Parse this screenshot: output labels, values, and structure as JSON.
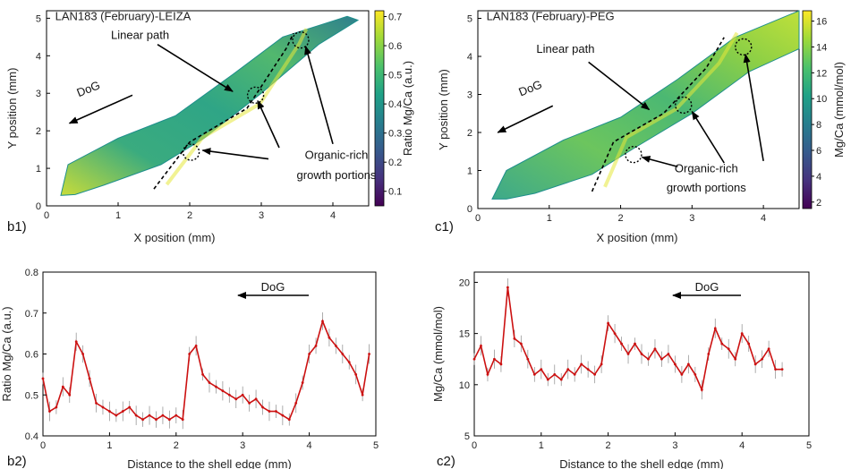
{
  "chart_data": [
    {
      "id": "b1",
      "type": "heatmap",
      "panel_label": "b1)",
      "title": "LAN183 (February)-LEIZA",
      "xlabel": "X position (mm)",
      "ylabel": "Y position (mm)",
      "xlim": [
        0,
        4.5
      ],
      "ylim": [
        0,
        5.2
      ],
      "xticks": [
        "0",
        "1",
        "2",
        "3",
        "4"
      ],
      "yticks": [
        "0",
        "1",
        "2",
        "3",
        "4",
        "5"
      ],
      "colorbar_label": "Ratio Mg/Ca (a.u.)",
      "colorbar_range": [
        0.05,
        0.72
      ],
      "colorbar_ticks": [
        "0.1",
        "0.2",
        "0.3",
        "0.4",
        "0.5",
        "0.6",
        "0.7"
      ],
      "annotations": {
        "linear_path": "Linear path",
        "dog": "DoG",
        "organic_1": "Organic-rich",
        "organic_2": "growth portions"
      }
    },
    {
      "id": "c1",
      "type": "heatmap",
      "panel_label": "c1)",
      "title": "LAN183 (February)-PEG",
      "xlabel": "X position (mm)",
      "ylabel": "Y position (mm)",
      "xlim": [
        0,
        4.5
      ],
      "ylim": [
        0,
        5.2
      ],
      "xticks": [
        "0",
        "1",
        "2",
        "3",
        "4"
      ],
      "yticks": [
        "0",
        "1",
        "2",
        "3",
        "4",
        "5"
      ],
      "colorbar_label": "Mg/Ca  (mmol/mol)",
      "colorbar_range": [
        1.5,
        16.8
      ],
      "colorbar_ticks": [
        "2",
        "4",
        "6",
        "8",
        "10",
        "12",
        "14",
        "16"
      ],
      "annotations": {
        "linear_path": "Linear path",
        "dog": "DoG",
        "organic_1": "Organic-rich",
        "organic_2": "growth portions"
      }
    },
    {
      "id": "b2",
      "type": "line",
      "panel_label": "b2)",
      "xlabel": "Distance to the shell edge (mm)",
      "ylabel": "Ratio Mg/Ca (a.u.)",
      "xlim": [
        0,
        5
      ],
      "ylim": [
        0.4,
        0.8
      ],
      "xticks": [
        "0",
        "1",
        "2",
        "3",
        "4",
        "5"
      ],
      "yticks": [
        "0.4",
        "0.5",
        "0.6",
        "0.7",
        "0.8"
      ],
      "annotation": "DoG",
      "series": [
        {
          "name": "Mg/Ca",
          "color": "#cc1111",
          "x": [
            0,
            0.1,
            0.2,
            0.3,
            0.4,
            0.5,
            0.6,
            0.7,
            0.8,
            0.9,
            1.0,
            1.1,
            1.2,
            1.3,
            1.4,
            1.5,
            1.6,
            1.7,
            1.8,
            1.9,
            2.0,
            2.1,
            2.2,
            2.3,
            2.4,
            2.5,
            2.6,
            2.7,
            2.8,
            2.9,
            3.0,
            3.1,
            3.2,
            3.3,
            3.4,
            3.5,
            3.6,
            3.7,
            3.8,
            3.9,
            4.0,
            4.1,
            4.2,
            4.3,
            4.4,
            4.5,
            4.6,
            4.7,
            4.8,
            4.9
          ],
          "y": [
            0.54,
            0.46,
            0.47,
            0.52,
            0.5,
            0.63,
            0.6,
            0.54,
            0.48,
            0.47,
            0.46,
            0.45,
            0.46,
            0.47,
            0.45,
            0.44,
            0.45,
            0.44,
            0.45,
            0.44,
            0.45,
            0.44,
            0.6,
            0.62,
            0.55,
            0.53,
            0.52,
            0.51,
            0.5,
            0.49,
            0.5,
            0.48,
            0.49,
            0.47,
            0.46,
            0.46,
            0.45,
            0.44,
            0.48,
            0.53,
            0.6,
            0.62,
            0.68,
            0.64,
            0.62,
            0.6,
            0.58,
            0.55,
            0.5,
            0.6
          ]
        }
      ]
    },
    {
      "id": "c2",
      "type": "line",
      "panel_label": "c2)",
      "xlabel": "Distance to the shell edge (mm)",
      "ylabel": "Mg/Ca (mmol/mol)",
      "xlim": [
        0,
        5
      ],
      "ylim": [
        5,
        21
      ],
      "xticks": [
        "0",
        "1",
        "2",
        "3",
        "4",
        "5"
      ],
      "yticks": [
        "5",
        "10",
        "15",
        "20"
      ],
      "annotation": "DoG",
      "series": [
        {
          "name": "Mg/Ca",
          "color": "#cc1111",
          "x": [
            0,
            0.1,
            0.2,
            0.3,
            0.4,
            0.5,
            0.6,
            0.7,
            0.8,
            0.9,
            1.0,
            1.1,
            1.2,
            1.3,
            1.4,
            1.5,
            1.6,
            1.7,
            1.8,
            1.9,
            2.0,
            2.1,
            2.2,
            2.3,
            2.4,
            2.5,
            2.6,
            2.7,
            2.8,
            2.9,
            3.0,
            3.1,
            3.2,
            3.3,
            3.4,
            3.5,
            3.6,
            3.7,
            3.8,
            3.9,
            4.0,
            4.1,
            4.2,
            4.3,
            4.4,
            4.5,
            4.6
          ],
          "y": [
            12.5,
            13.8,
            11.0,
            12.5,
            12.0,
            19.5,
            14.5,
            14.0,
            12.5,
            11.0,
            11.5,
            10.5,
            11.0,
            10.5,
            11.5,
            11.0,
            12.0,
            11.5,
            11.0,
            12.0,
            16.0,
            15.0,
            14.0,
            13.0,
            14.0,
            13.0,
            12.5,
            13.5,
            12.5,
            13.0,
            12.0,
            11.0,
            12.0,
            11.0,
            9.5,
            13.0,
            15.5,
            14.0,
            13.5,
            12.5,
            15.0,
            14.0,
            12.0,
            12.5,
            13.5,
            11.5,
            11.5
          ]
        }
      ]
    }
  ]
}
